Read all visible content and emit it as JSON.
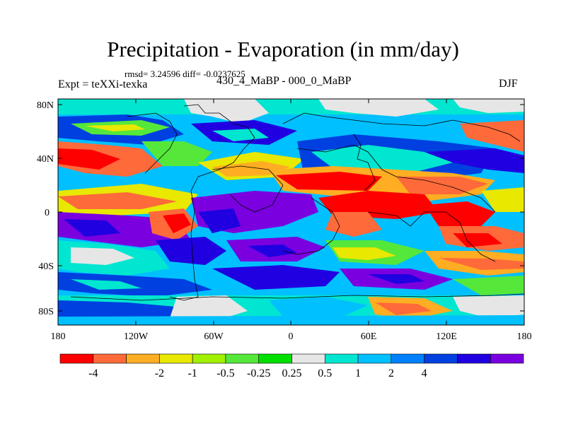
{
  "title": "Precipitation - Evaporation (in mm/day)",
  "stats": "rmsd= 3.24596 diff= -0.0237625",
  "experiment": "Expt = teXXi-texka",
  "period": "430_4_MaBP - 000_0_MaBP",
  "season": "DJF",
  "axes": {
    "lat_ticks": [
      "80N",
      "40N",
      "0",
      "40S",
      "80S"
    ],
    "lon_ticks": [
      "180",
      "120W",
      "60W",
      "0",
      "60E",
      "120E",
      "180"
    ]
  },
  "colorbar": {
    "colors": [
      "#ff0000",
      "#ff6a3a",
      "#ffad22",
      "#e8e800",
      "#a0f000",
      "#55e83a",
      "#00e000",
      "#e6e6e6",
      "#00e6d0",
      "#00c0ff",
      "#0080ff",
      "#0040e0",
      "#2000e0",
      "#7a00e0"
    ],
    "labels": [
      "-4",
      "-2",
      "-1",
      "-0.5",
      "-0.25",
      "0.25",
      "0.5",
      "1",
      "2",
      "4"
    ]
  }
}
